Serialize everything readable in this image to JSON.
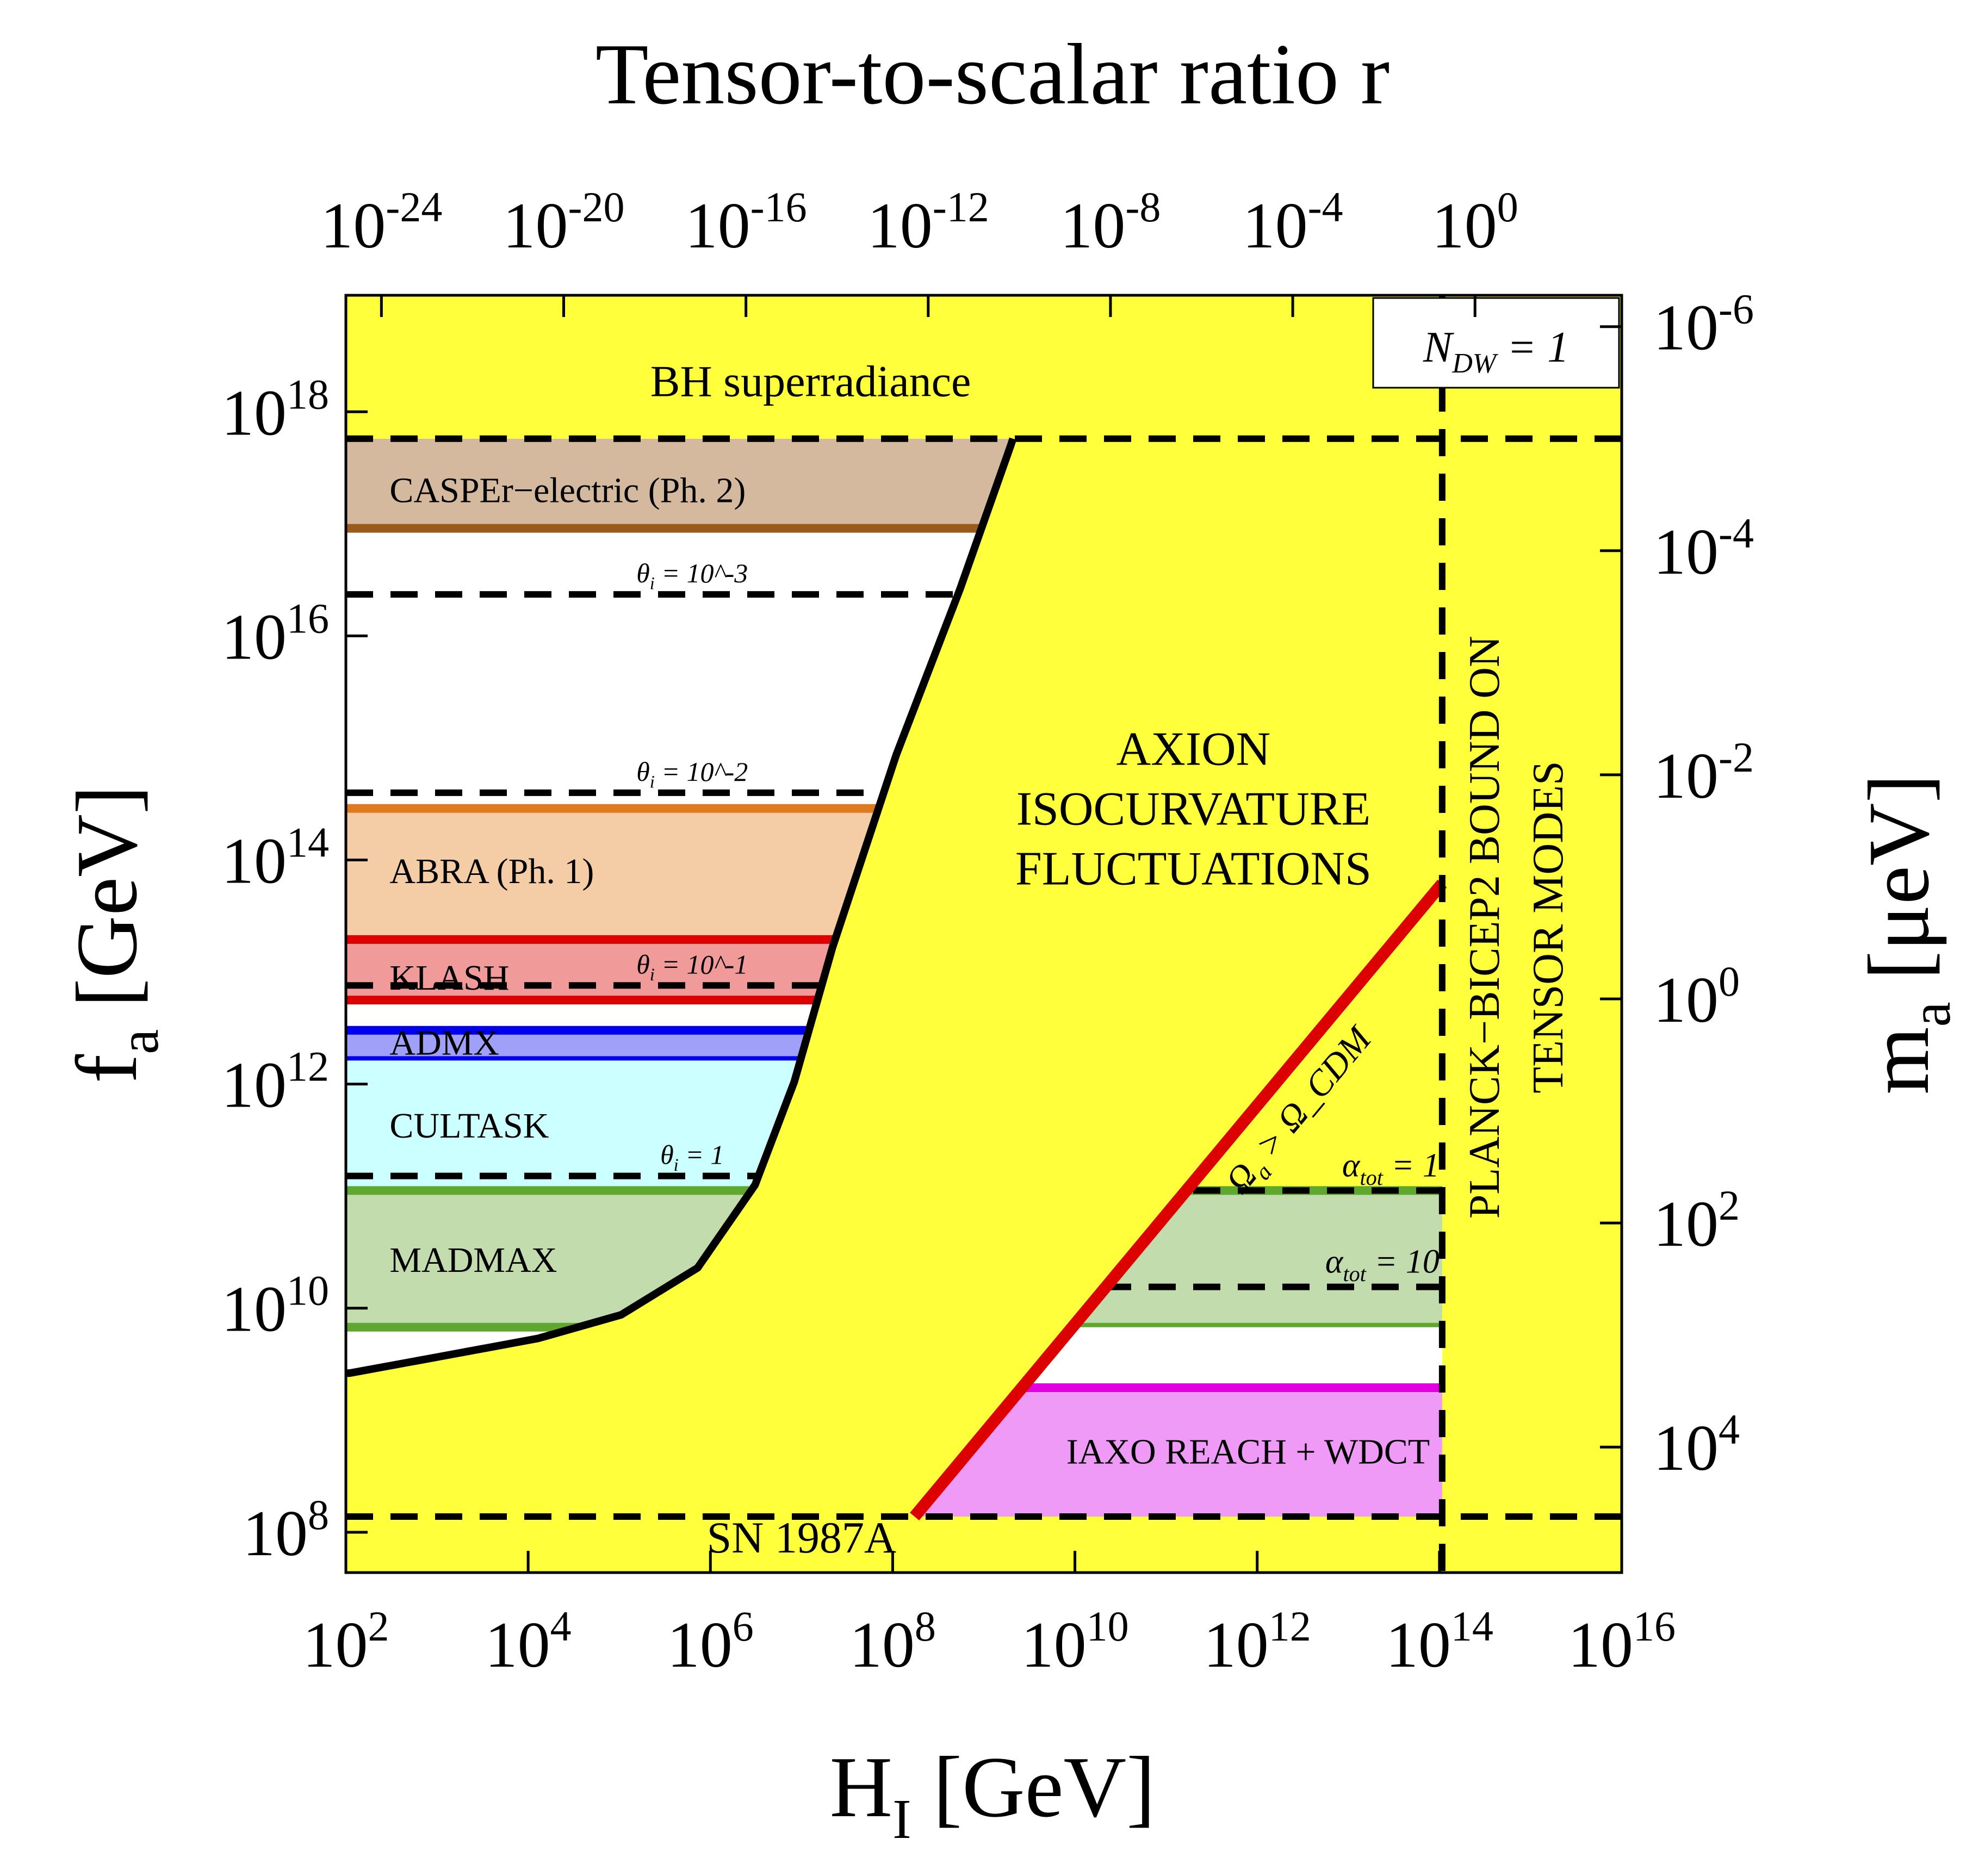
{
  "chart_data": {
    "type": "area",
    "title": "Tensor-to-scalar ratio r",
    "xlabel": "H_I [GeV]",
    "ylabel": "f_a [GeV]",
    "y2label": "m_a [μeV]",
    "x_scale": "log",
    "y_scale": "log",
    "xlim_log10": [
      2,
      16
    ],
    "ylim_log10": [
      7.64,
      19.04
    ],
    "x_ticks": [
      "10^2",
      "10^4",
      "10^6",
      "10^8",
      "10^10",
      "10^12",
      "10^14",
      "10^16"
    ],
    "x_tick_values_log10": [
      2,
      4,
      6,
      8,
      10,
      12,
      14,
      16
    ],
    "y_ticks": [
      "10^8",
      "10^10",
      "10^12",
      "10^14",
      "10^16",
      "10^18"
    ],
    "y_tick_values_log10": [
      8,
      10,
      12,
      14,
      16,
      18
    ],
    "top_axis": {
      "label": "Tensor-to-scalar ratio r",
      "ticks": [
        "10^-24",
        "10^-20",
        "10^-16",
        "10^-12",
        "10^-8",
        "10^-4",
        "10^0"
      ],
      "tick_values_log10_r": [
        -24,
        -20,
        -16,
        -12,
        -8,
        -4,
        0
      ],
      "log10_H_at_r_equals_1": 14.39
    },
    "right_axis": {
      "label": "m_a [μeV]",
      "ticks": [
        "10^-6",
        "10^-4",
        "10^-2",
        "10^0",
        "10^2",
        "10^4"
      ],
      "tick_values_log10_m": [
        -6,
        -4,
        -2,
        0,
        2,
        4
      ],
      "log10_fa_at_m_equals_1": 12.76
    },
    "grid": false,
    "colors": {
      "background": "#ffff3c",
      "allowed": "#ffffff",
      "casper_fill": "#d4b99e",
      "casper_line": "#9a5a1a",
      "abra_fill": "#f4cda6",
      "abra_line": "#e07a20",
      "klash_fill": "#f09a9a",
      "klash_line": "#dd0000",
      "admx_fill": "#a0a0f8",
      "admx_line": "#0000ee",
      "cultask_fill": "#ccffff",
      "madmax_fill": "#c2dcae",
      "madmax_line": "#5fa830",
      "iaxo_fill": "#f09af8",
      "iaxo_line": "#e000e0",
      "red_line": "#dd0000"
    },
    "isocurvature_boundary": {
      "log10_H": [
        2.0,
        2.04,
        2.98,
        4.11,
        5.02,
        5.86,
        6.49,
        6.92,
        7.34,
        8.04,
        8.74,
        9.3,
        9.32
      ],
      "log10_fa": [
        9.42,
        9.42,
        9.56,
        9.73,
        9.94,
        10.36,
        11.1,
        12.02,
        13.22,
        14.94,
        16.42,
        17.71,
        17.76
      ]
    },
    "dm_overproduction_line": {
      "label": "Ω_a > Ω_CDM",
      "log10_H": [
        8.24,
        14.03
      ],
      "log10_fa": [
        8.14,
        13.79
      ]
    },
    "bounds": {
      "bh_superradiance": {
        "label": "BH superradiance",
        "log10_fa": 17.76
      },
      "sn1987a": {
        "label": "SN 1987A",
        "log10_fa": 8.14
      },
      "planck_bicep2": {
        "label_line1": "PLANCK−BICEP2 BOUND ON",
        "label_line2": "TENSOR MODES",
        "log10_H": 14.03
      }
    },
    "isocurvature_label": [
      "AXION",
      "ISOCURVATURE",
      "FLUCTUATIONS"
    ],
    "ndw_label": "N_DW = 1",
    "left_bands": [
      {
        "name": "CASPEr−electric (Ph. 2)",
        "top_log10_fa": 17.76,
        "bottom_log10_fa": 16.96,
        "fill": "casper_fill",
        "lines": [
          16.96
        ],
        "line_color": "casper_line"
      },
      {
        "name": "ABRA (Ph. 1)",
        "top_log10_fa": 14.46,
        "bottom_log10_fa": 13.29,
        "fill": "abra_fill",
        "lines": [
          14.46
        ],
        "line_color": "abra_line"
      },
      {
        "name": "KLASH",
        "top_log10_fa": 13.29,
        "bottom_log10_fa": 12.75,
        "fill": "klash_fill",
        "lines": [
          13.29,
          12.75
        ],
        "line_color": "klash_line"
      },
      {
        "name": "ADMX",
        "top_log10_fa": 12.48,
        "bottom_log10_fa": 12.21,
        "fill": "admx_fill",
        "lines": [
          12.48,
          12.21
        ],
        "line_color": "admx_line"
      },
      {
        "name": "CULTASK",
        "top_log10_fa": 12.21,
        "bottom_log10_fa": 11.05,
        "fill": "cultask_fill",
        "lines": [],
        "line_color": "admx_line"
      },
      {
        "name": "MADMAX",
        "top_log10_fa": 11.05,
        "bottom_log10_fa": 9.83,
        "fill": "madmax_fill",
        "lines": [
          11.05,
          9.83
        ],
        "line_color": "madmax_line"
      }
    ],
    "theta_lines": [
      {
        "label": "θ_i = 10^-3",
        "log10_fa": 16.37
      },
      {
        "label": "θ_i = 10^-2",
        "log10_fa": 14.6
      },
      {
        "label": "θ_i = 10^-1",
        "log10_fa": 12.88
      },
      {
        "label": "θ_i = 1",
        "log10_fa": 11.18
      }
    ],
    "right_bands": [
      {
        "name": "MADMAX",
        "top_log10_fa": 11.05,
        "bottom_log10_fa": 9.83,
        "fill": "madmax_fill",
        "lines": [
          11.05,
          9.83
        ],
        "line_color": "madmax_line",
        "show_label": false
      },
      {
        "name": "",
        "top_log10_fa": 9.83,
        "bottom_log10_fa": 9.29,
        "fill": "allowed",
        "lines": [],
        "line_color": "madmax_line",
        "show_label": false
      },
      {
        "name": "IAXO REACH + WDCT",
        "top_log10_fa": 9.29,
        "bottom_log10_fa": 8.14,
        "fill": "iaxo_fill",
        "lines": [
          9.29
        ],
        "line_color": "iaxo_line",
        "show_label": true
      }
    ],
    "alpha_lines": [
      {
        "label": "α_tot = 1",
        "log10_fa": 11.05
      },
      {
        "label": "α_tot = 10",
        "log10_fa": 10.19
      }
    ]
  }
}
